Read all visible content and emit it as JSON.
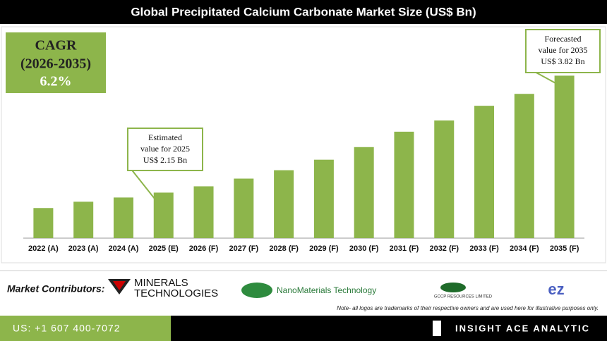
{
  "chart_data": {
    "type": "bar",
    "title": "Global Precipitated Calcium Carbonate Market Size (US$ Bn)",
    "categories": [
      "2022 (A)",
      "2023 (A)",
      "2024 (A)",
      "2025 (E)",
      "2026 (F)",
      "2027 (F)",
      "2028 (F)",
      "2029 (F)",
      "2030 (F)",
      "2031 (F)",
      "2032 (F)",
      "2033 (F)",
      "2034 (F)",
      "2035 (F)"
    ],
    "values": [
      1.93,
      2.02,
      2.08,
      2.15,
      2.24,
      2.35,
      2.47,
      2.62,
      2.8,
      3.02,
      3.18,
      3.39,
      3.56,
      3.82
    ],
    "color": "#8db54b",
    "ylim": [
      1.5,
      4.0
    ],
    "annotations": [
      {
        "lines": [
          "Estimated",
          "value for 2025",
          "US$ 2.15 Bn"
        ],
        "index": 3
      },
      {
        "lines": [
          "Forecasted",
          "value for 2035",
          "US$ 3.82 Bn"
        ],
        "index": 13
      }
    ]
  },
  "cagr": {
    "label": "CAGR",
    "period": "(2026-2035)",
    "value": "6.2%"
  },
  "contributors": {
    "label": "Market Contributors:",
    "logos": [
      "MINERALS",
      "TECHNOLOGIES",
      "NanoMaterials Technology",
      "GCCP RESOURCES LIMITED",
      "ez"
    ],
    "note": "Note- all logos are trademarks of their respective owners and are used here for illustrative purposes only."
  },
  "footer": {
    "phone": "US: +1 607 400-7072",
    "brand": "INSIGHT ACE ANALYTIC"
  }
}
